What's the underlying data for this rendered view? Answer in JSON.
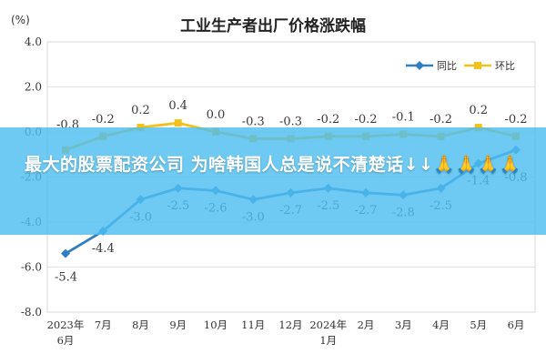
{
  "chart_data": {
    "type": "line",
    "title": "工业生产者出厂价格涨跌幅",
    "unit_label": "(%)",
    "categories": [
      [
        "2023年",
        "6月"
      ],
      [
        "7月"
      ],
      [
        "8月"
      ],
      [
        "9月"
      ],
      [
        "10月"
      ],
      [
        "11月"
      ],
      [
        "12月"
      ],
      [
        "2024年",
        "1月"
      ],
      [
        "2月"
      ],
      [
        "3月"
      ],
      [
        "4月"
      ],
      [
        "5月"
      ],
      [
        "6月"
      ]
    ],
    "ylim": [
      -8.0,
      4.0
    ],
    "yticks": [
      "4.0",
      "2.0",
      "0.0",
      "-2.0",
      "-4.0",
      "-6.0",
      "-8.0"
    ],
    "ytick_values": [
      4,
      2,
      0,
      -2,
      -4,
      -6,
      -8
    ],
    "grid": true,
    "legend_position": "top-right",
    "series": [
      {
        "name": "同比",
        "color": "#2f7fc1",
        "marker": "diamond",
        "values": [
          -5.4,
          -4.4,
          -3.0,
          -2.5,
          -2.6,
          -3.0,
          -2.7,
          -2.5,
          -2.7,
          -2.8,
          -2.5,
          -1.4,
          -0.8
        ],
        "labels": [
          "-5.4",
          "-4.4",
          "-3.0",
          "-2.5",
          "-2.6",
          "-3.0",
          "-2.7",
          "-2.5",
          "-2.7",
          "-2.8",
          "-2.5",
          "-1.4",
          "-0.8"
        ]
      },
      {
        "name": "环比",
        "color": "#f2c21b",
        "marker": "square",
        "values": [
          -0.8,
          -0.2,
          0.2,
          0.4,
          0.0,
          -0.3,
          -0.3,
          -0.2,
          -0.2,
          -0.1,
          -0.2,
          0.2,
          -0.2
        ],
        "labels": [
          "-0.8",
          "-0.2",
          "0.2",
          "0.4",
          "0.0",
          "-0.3",
          "-0.3",
          "-0.2",
          "-0.2",
          "-0.1",
          "-0.2",
          "0.2",
          "-0.2"
        ]
      }
    ]
  },
  "overlay": {
    "text": "最大的股票配资公司 为啥韩国人总是说不清楚话↓↓🙏🙏🙏🙏",
    "background": "#4ebef0"
  }
}
